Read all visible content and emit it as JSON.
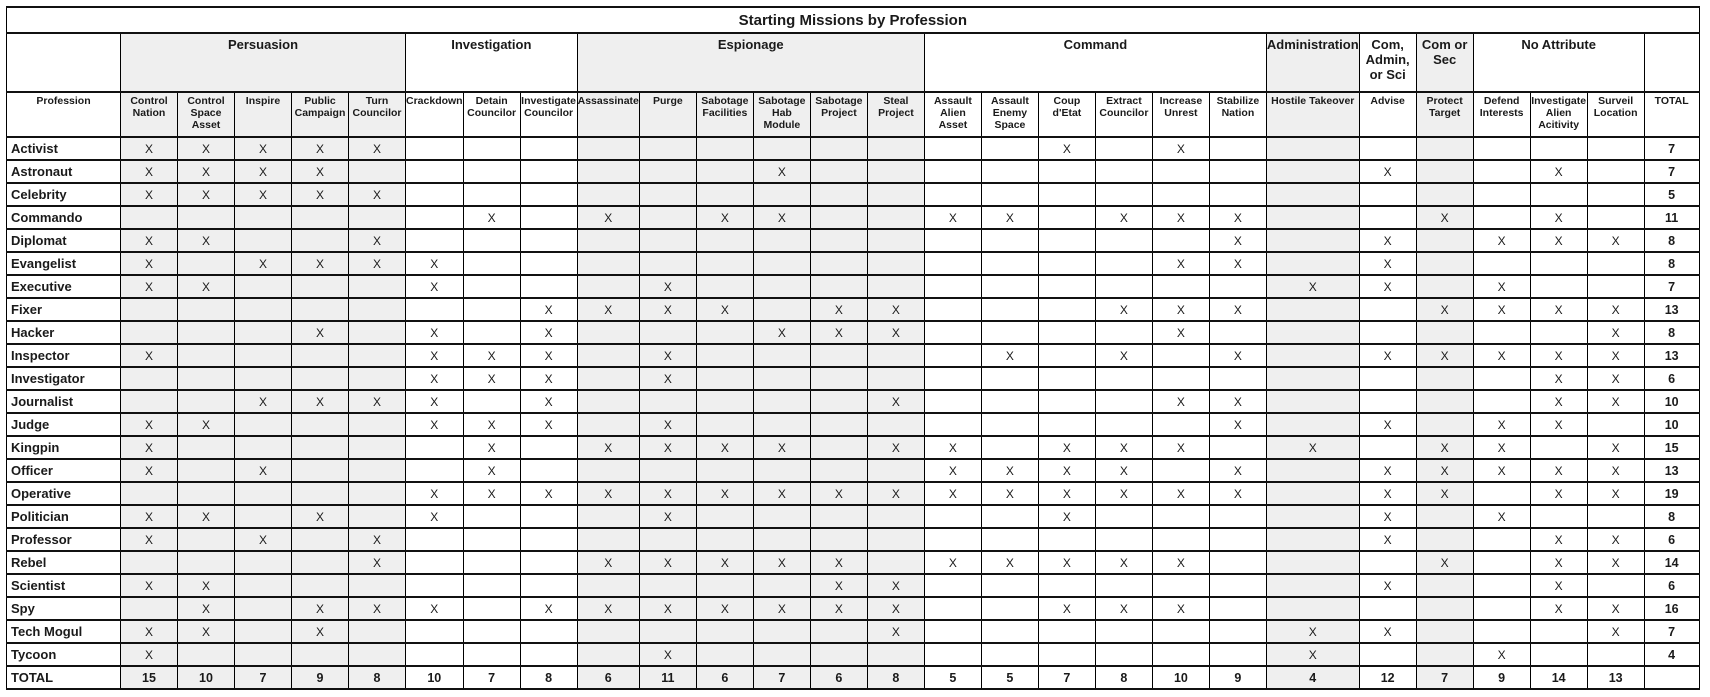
{
  "title": "Starting Missions by Profession",
  "x_mark": "X",
  "colors": {
    "shaded_column_bg": "#efefef",
    "border": "#000000",
    "text": "#1a1a1a"
  },
  "table": {
    "profession_header": "Profession",
    "total_column_header": "TOTAL",
    "total_row_label": "TOTAL",
    "groups": [
      {
        "label": "Persuasion",
        "shaded": true,
        "columns": [
          "Control Nation",
          "Control Space Asset",
          "Inspire",
          "Public Campaign",
          "Turn Councilor"
        ]
      },
      {
        "label": "Investigation",
        "shaded": false,
        "columns": [
          "Crackdown",
          "Detain Councilor",
          "Investigate Councilor"
        ]
      },
      {
        "label": "Espionage",
        "shaded": true,
        "columns": [
          "Assassinate",
          "Purge",
          "Sabotage Facilities",
          "Sabotage Hab Module",
          "Sabotage Project",
          "Steal Project"
        ]
      },
      {
        "label": "Command",
        "shaded": false,
        "columns": [
          "Assault Alien Asset",
          "Assault Enemy Space Asset",
          "Coup d'Etat",
          "Extract Councilor",
          "Increase Unrest",
          "Stabilize Nation"
        ]
      },
      {
        "label": "Administration",
        "shaded": true,
        "columns": [
          "Hostile Takeover"
        ]
      },
      {
        "label": "Com, Admin, or Sci",
        "shaded": false,
        "columns": [
          "Advise"
        ]
      },
      {
        "label": "Com or Sec",
        "shaded": true,
        "columns": [
          "Protect Target"
        ]
      },
      {
        "label": "No Attribute",
        "shaded": false,
        "columns": [
          "Defend Interests",
          "Investigate Alien Acitivity",
          "Surveil Location"
        ]
      }
    ],
    "rows": [
      {
        "profession": "Activist",
        "marks": [
          1,
          1,
          1,
          1,
          1,
          0,
          0,
          0,
          0,
          0,
          0,
          0,
          0,
          0,
          0,
          0,
          1,
          0,
          1,
          0,
          0,
          0,
          0,
          0,
          0,
          0
        ],
        "total": 7
      },
      {
        "profession": "Astronaut",
        "marks": [
          1,
          1,
          1,
          1,
          0,
          0,
          0,
          0,
          0,
          0,
          0,
          1,
          0,
          0,
          0,
          0,
          0,
          0,
          0,
          0,
          0,
          1,
          0,
          0,
          1,
          0
        ],
        "total": 7
      },
      {
        "profession": "Celebrity",
        "marks": [
          1,
          1,
          1,
          1,
          1,
          0,
          0,
          0,
          0,
          0,
          0,
          0,
          0,
          0,
          0,
          0,
          0,
          0,
          0,
          0,
          0,
          0,
          0,
          0,
          0,
          0
        ],
        "total": 5
      },
      {
        "profession": "Commando",
        "marks": [
          0,
          0,
          0,
          0,
          0,
          0,
          1,
          0,
          1,
          0,
          1,
          1,
          0,
          0,
          1,
          1,
          0,
          1,
          1,
          1,
          0,
          0,
          1,
          0,
          1,
          0
        ],
        "total": 11
      },
      {
        "profession": "Diplomat",
        "marks": [
          1,
          1,
          0,
          0,
          1,
          0,
          0,
          0,
          0,
          0,
          0,
          0,
          0,
          0,
          0,
          0,
          0,
          0,
          0,
          1,
          0,
          1,
          0,
          1,
          1,
          1
        ],
        "total": 8
      },
      {
        "profession": "Evangelist",
        "marks": [
          1,
          0,
          1,
          1,
          1,
          1,
          0,
          0,
          0,
          0,
          0,
          0,
          0,
          0,
          0,
          0,
          0,
          0,
          1,
          1,
          0,
          1,
          0,
          0,
          0,
          0
        ],
        "total": 8
      },
      {
        "profession": "Executive",
        "marks": [
          1,
          1,
          0,
          0,
          0,
          1,
          0,
          0,
          0,
          1,
          0,
          0,
          0,
          0,
          0,
          0,
          0,
          0,
          0,
          0,
          1,
          1,
          0,
          1,
          0,
          0
        ],
        "total": 7
      },
      {
        "profession": "Fixer",
        "marks": [
          0,
          0,
          0,
          0,
          0,
          0,
          0,
          1,
          1,
          1,
          1,
          0,
          1,
          1,
          0,
          0,
          0,
          1,
          1,
          1,
          0,
          0,
          1,
          1,
          1,
          1
        ],
        "total": 13
      },
      {
        "profession": "Hacker",
        "marks": [
          0,
          0,
          0,
          1,
          0,
          1,
          0,
          1,
          0,
          0,
          0,
          1,
          1,
          1,
          0,
          0,
          0,
          0,
          1,
          0,
          0,
          0,
          0,
          0,
          0,
          1
        ],
        "total": 8
      },
      {
        "profession": "Inspector",
        "marks": [
          1,
          0,
          0,
          0,
          0,
          1,
          1,
          1,
          0,
          1,
          0,
          0,
          0,
          0,
          0,
          1,
          0,
          1,
          0,
          1,
          0,
          1,
          1,
          1,
          1,
          1
        ],
        "total": 13
      },
      {
        "profession": "Investigator",
        "marks": [
          0,
          0,
          0,
          0,
          0,
          1,
          1,
          1,
          0,
          1,
          0,
          0,
          0,
          0,
          0,
          0,
          0,
          0,
          0,
          0,
          0,
          0,
          0,
          0,
          1,
          1
        ],
        "total": 6
      },
      {
        "profession": "Journalist",
        "marks": [
          0,
          0,
          1,
          1,
          1,
          1,
          0,
          1,
          0,
          0,
          0,
          0,
          0,
          1,
          0,
          0,
          0,
          0,
          1,
          1,
          0,
          0,
          0,
          0,
          1,
          1
        ],
        "total": 10
      },
      {
        "profession": "Judge",
        "marks": [
          1,
          1,
          0,
          0,
          0,
          1,
          1,
          1,
          0,
          1,
          0,
          0,
          0,
          0,
          0,
          0,
          0,
          0,
          0,
          1,
          0,
          1,
          0,
          1,
          1,
          0
        ],
        "total": 10
      },
      {
        "profession": "Kingpin",
        "marks": [
          1,
          0,
          0,
          0,
          0,
          0,
          1,
          0,
          1,
          1,
          1,
          1,
          0,
          1,
          1,
          0,
          1,
          1,
          1,
          0,
          1,
          0,
          1,
          1,
          0,
          1
        ],
        "total": 15
      },
      {
        "profession": "Officer",
        "marks": [
          1,
          0,
          1,
          0,
          0,
          0,
          1,
          0,
          0,
          0,
          0,
          0,
          0,
          0,
          1,
          1,
          1,
          1,
          0,
          1,
          0,
          1,
          1,
          1,
          1,
          1
        ],
        "total": 13
      },
      {
        "profession": "Operative",
        "marks": [
          0,
          0,
          0,
          0,
          0,
          1,
          1,
          1,
          1,
          1,
          1,
          1,
          1,
          1,
          1,
          1,
          1,
          1,
          1,
          1,
          0,
          1,
          1,
          0,
          1,
          1
        ],
        "total": 19
      },
      {
        "profession": "Politician",
        "marks": [
          1,
          1,
          0,
          1,
          0,
          1,
          0,
          0,
          0,
          1,
          0,
          0,
          0,
          0,
          0,
          0,
          1,
          0,
          0,
          0,
          0,
          1,
          0,
          1,
          0,
          0
        ],
        "total": 8
      },
      {
        "profession": "Professor",
        "marks": [
          1,
          0,
          1,
          0,
          1,
          0,
          0,
          0,
          0,
          0,
          0,
          0,
          0,
          0,
          0,
          0,
          0,
          0,
          0,
          0,
          0,
          1,
          0,
          0,
          1,
          1
        ],
        "total": 6
      },
      {
        "profession": "Rebel",
        "marks": [
          0,
          0,
          0,
          0,
          1,
          0,
          0,
          0,
          1,
          1,
          1,
          1,
          1,
          0,
          1,
          1,
          1,
          1,
          1,
          0,
          0,
          0,
          1,
          0,
          1,
          1
        ],
        "total": 14
      },
      {
        "profession": "Scientist",
        "marks": [
          1,
          1,
          0,
          0,
          0,
          0,
          0,
          0,
          0,
          0,
          0,
          0,
          1,
          1,
          0,
          0,
          0,
          0,
          0,
          0,
          0,
          1,
          0,
          0,
          1,
          0
        ],
        "total": 6
      },
      {
        "profession": "Spy",
        "marks": [
          0,
          1,
          0,
          1,
          1,
          1,
          0,
          1,
          1,
          1,
          1,
          1,
          1,
          1,
          0,
          0,
          1,
          1,
          1,
          0,
          0,
          0,
          0,
          0,
          1,
          1
        ],
        "total": 16
      },
      {
        "profession": "Tech Mogul",
        "marks": [
          1,
          1,
          0,
          1,
          0,
          0,
          0,
          0,
          0,
          0,
          0,
          0,
          0,
          1,
          0,
          0,
          0,
          0,
          0,
          0,
          1,
          1,
          0,
          0,
          0,
          1
        ],
        "total": 7
      },
      {
        "profession": "Tycoon",
        "marks": [
          1,
          0,
          0,
          0,
          0,
          0,
          0,
          0,
          0,
          1,
          0,
          0,
          0,
          0,
          0,
          0,
          0,
          0,
          0,
          0,
          1,
          0,
          0,
          1,
          0,
          0
        ],
        "total": 4
      }
    ],
    "column_totals": [
      15,
      10,
      7,
      9,
      8,
      10,
      7,
      8,
      6,
      11,
      6,
      7,
      6,
      8,
      5,
      5,
      7,
      8,
      10,
      9,
      4,
      12,
      7,
      9,
      14,
      13
    ]
  }
}
